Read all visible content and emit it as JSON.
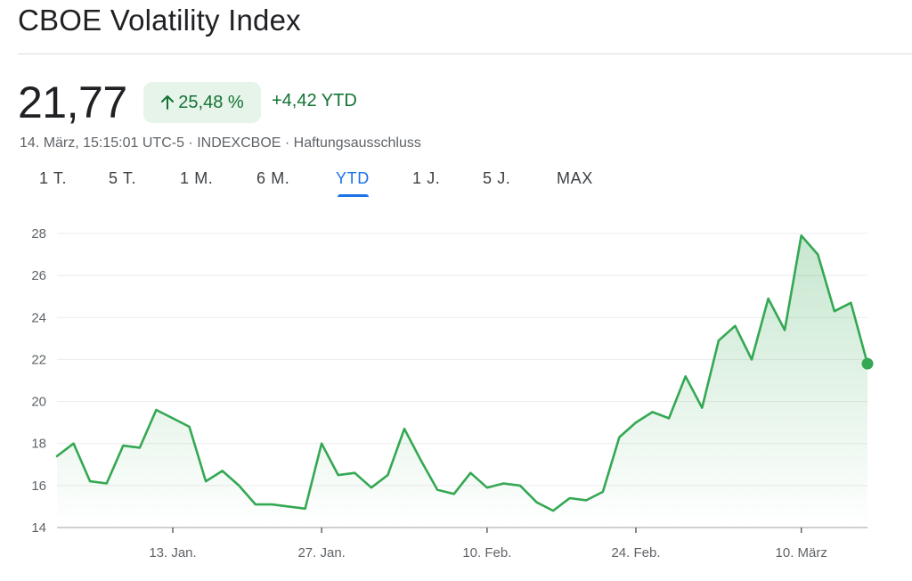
{
  "header": {
    "title": "CBOE Volatility Index"
  },
  "quote": {
    "price": "21,77",
    "change_pct": "25,48 %",
    "change_ytd": "+4,42 YTD",
    "meta": "14. März, 15:15:01 UTC-5 · INDEXCBOE · Haftungsausschluss"
  },
  "tabs": [
    {
      "label": "1 T."
    },
    {
      "label": "5 T."
    },
    {
      "label": "1 M."
    },
    {
      "label": "6 M."
    },
    {
      "label": "YTD"
    },
    {
      "label": "1 J."
    },
    {
      "label": "5 J."
    },
    {
      "label": "MAX"
    }
  ],
  "active_tab": "YTD",
  "colors": {
    "positive": "#137333",
    "positive_bg": "#e6f4ea",
    "line": "#34a853",
    "accent": "#1a73e8"
  },
  "icons": {
    "change": "arrow-up-icon"
  },
  "chart_data": {
    "type": "area",
    "title": "",
    "xlabel": "",
    "ylabel": "",
    "ylim": [
      14,
      28
    ],
    "yticks": [
      14,
      16,
      18,
      20,
      22,
      24,
      26,
      28
    ],
    "x_tick_labels": [
      {
        "label": "13. Jan.",
        "index": 7
      },
      {
        "label": "27. Jan.",
        "index": 16
      },
      {
        "label": "10. Feb.",
        "index": 26
      },
      {
        "label": "24. Feb.",
        "index": 35
      },
      {
        "label": "10. März",
        "index": 45
      }
    ],
    "grid": true,
    "series": [
      {
        "values": [
          17.4,
          18.0,
          16.2,
          16.1,
          17.9,
          17.8,
          19.6,
          19.2,
          18.8,
          16.2,
          16.7,
          16.0,
          15.1,
          15.1,
          15.0,
          14.9,
          18.0,
          16.5,
          16.6,
          15.9,
          16.5,
          18.7,
          17.2,
          15.8,
          15.6,
          16.6,
          15.9,
          16.1,
          16.0,
          15.2,
          14.8,
          15.4,
          15.3,
          15.7,
          18.3,
          19.0,
          19.5,
          19.2,
          21.2,
          19.7,
          22.9,
          23.6,
          22.0,
          24.9,
          23.4,
          27.9,
          27.0,
          24.3,
          24.7,
          21.8
        ]
      }
    ]
  }
}
